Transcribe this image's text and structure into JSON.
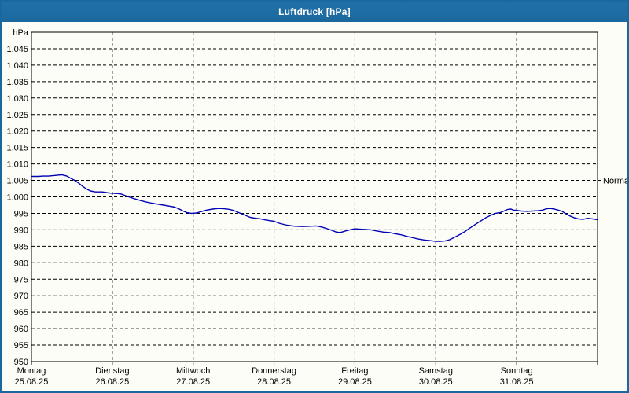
{
  "window": {
    "title": "Luftdruck [hPa]",
    "titlebar_color": "#1b689e",
    "border_color": "#1b689e",
    "background_color": "#fbfdf6"
  },
  "chart_data": {
    "type": "line",
    "title": "Luftdruck [hPa]",
    "unit_label": "hPa",
    "grid": "dashed",
    "legend_position": "none",
    "y_axis": {
      "min": 950,
      "max": 1050,
      "tick_step": 5,
      "tick_labels": [
        "1.045",
        "1.040",
        "1.035",
        "1.030",
        "1.025",
        "1.020",
        "1.015",
        "1.010",
        "1.005",
        "1.000",
        "995",
        "990",
        "985",
        "980",
        "975",
        "970",
        "965",
        "960",
        "955",
        "950"
      ],
      "tick_values": [
        1045,
        1040,
        1035,
        1030,
        1025,
        1020,
        1015,
        1010,
        1005,
        1000,
        995,
        990,
        985,
        980,
        975,
        970,
        965,
        960,
        955,
        950
      ]
    },
    "x_axis": {
      "total_hours": 168,
      "days": [
        {
          "weekday": "Montag",
          "date": "25.08.25"
        },
        {
          "weekday": "Dienstag",
          "date": "26.08.25"
        },
        {
          "weekday": "Mittwoch",
          "date": "27.08.25"
        },
        {
          "weekday": "Donnerstag",
          "date": "28.08.25"
        },
        {
          "weekday": "Freitag",
          "date": "29.08.25"
        },
        {
          "weekday": "Samstag",
          "date": "30.08.25"
        },
        {
          "weekday": "Sonntag",
          "date": "31.08.25"
        }
      ]
    },
    "normal_marker": {
      "label": "Normal",
      "value": 1005
    },
    "series": [
      {
        "name": "Luftdruck",
        "color": "#0000b4",
        "points": [
          [
            0,
            1006.2
          ],
          [
            2,
            1006.2
          ],
          [
            3.5,
            1006.3
          ],
          [
            5,
            1006.3
          ],
          [
            7,
            1006.5
          ],
          [
            9,
            1006.7
          ],
          [
            10.5,
            1006.3
          ],
          [
            11.7,
            1005.6
          ],
          [
            12.8,
            1005.0
          ],
          [
            14,
            1004.2
          ],
          [
            15.2,
            1003.2
          ],
          [
            16.3,
            1002.4
          ],
          [
            17.5,
            1001.8
          ],
          [
            19,
            1001.5
          ],
          [
            21,
            1001.5
          ],
          [
            23,
            1001.2
          ],
          [
            24,
            1001.1
          ],
          [
            25.7,
            1001.0
          ],
          [
            26.8,
            1000.8
          ],
          [
            28,
            1000.3
          ],
          [
            29.2,
            999.9
          ],
          [
            30.3,
            999.5
          ],
          [
            32,
            999.0
          ],
          [
            33.8,
            998.5
          ],
          [
            35.7,
            998.1
          ],
          [
            37.3,
            997.8
          ],
          [
            39.2,
            997.5
          ],
          [
            40.8,
            997.2
          ],
          [
            42.5,
            996.9
          ],
          [
            43.9,
            996.3
          ],
          [
            45,
            995.7
          ],
          [
            46.2,
            995.2
          ],
          [
            47.4,
            995.0
          ],
          [
            49,
            995.1
          ],
          [
            50.6,
            995.6
          ],
          [
            52,
            996.0
          ],
          [
            53.7,
            996.3
          ],
          [
            55.5,
            996.5
          ],
          [
            57.2,
            996.4
          ],
          [
            58.8,
            996.2
          ],
          [
            60.2,
            995.8
          ],
          [
            61.8,
            995.1
          ],
          [
            63.5,
            994.4
          ],
          [
            64.9,
            993.8
          ],
          [
            66.5,
            993.5
          ],
          [
            67.7,
            993.4
          ],
          [
            69.5,
            993.0
          ],
          [
            70.7,
            992.8
          ],
          [
            72,
            992.6
          ],
          [
            73.5,
            992.0
          ],
          [
            75.8,
            991.4
          ],
          [
            78.2,
            991.1
          ],
          [
            80.5,
            991.0
          ],
          [
            82.8,
            991.1
          ],
          [
            84.5,
            991.2
          ],
          [
            85.9,
            990.9
          ],
          [
            87,
            990.6
          ],
          [
            88.7,
            990.0
          ],
          [
            90.5,
            989.3
          ],
          [
            91.7,
            989.2
          ],
          [
            93.3,
            989.7
          ],
          [
            94.5,
            990.0
          ],
          [
            96,
            990.3
          ],
          [
            97.5,
            990.2
          ],
          [
            99.2,
            990.1
          ],
          [
            100.8,
            990.0
          ],
          [
            102.7,
            989.6
          ],
          [
            104.5,
            989.3
          ],
          [
            106.2,
            989.2
          ],
          [
            108,
            988.8
          ],
          [
            109.7,
            988.5
          ],
          [
            111.5,
            988.0
          ],
          [
            113.2,
            987.6
          ],
          [
            114.8,
            987.2
          ],
          [
            116.7,
            986.9
          ],
          [
            118.5,
            986.7
          ],
          [
            120,
            986.5
          ],
          [
            121.3,
            986.5
          ],
          [
            122.7,
            986.6
          ],
          [
            124.1,
            987.0
          ],
          [
            125.5,
            987.7
          ],
          [
            127.2,
            988.6
          ],
          [
            128.8,
            989.6
          ],
          [
            130.2,
            990.6
          ],
          [
            131.8,
            991.7
          ],
          [
            133.5,
            992.8
          ],
          [
            134.9,
            993.7
          ],
          [
            136.5,
            994.5
          ],
          [
            137.7,
            995.0
          ],
          [
            139.1,
            995.2
          ],
          [
            140.2,
            995.7
          ],
          [
            141.4,
            996.2
          ],
          [
            142.3,
            996.3
          ],
          [
            143,
            996.0
          ],
          [
            144,
            995.9
          ],
          [
            145.4,
            995.7
          ],
          [
            147,
            995.6
          ],
          [
            148.6,
            995.7
          ],
          [
            150.3,
            995.8
          ],
          [
            151.7,
            996.0
          ],
          [
            152.8,
            996.4
          ],
          [
            154,
            996.5
          ],
          [
            155.2,
            996.3
          ],
          [
            156.3,
            996.0
          ],
          [
            157.5,
            995.6
          ],
          [
            158.7,
            994.8
          ],
          [
            159.8,
            994.2
          ],
          [
            161,
            993.7
          ],
          [
            162.4,
            993.3
          ],
          [
            163.8,
            993.2
          ],
          [
            165,
            993.5
          ],
          [
            166.1,
            993.4
          ],
          [
            167.3,
            993.2
          ],
          [
            168,
            993.1
          ]
        ]
      }
    ]
  }
}
